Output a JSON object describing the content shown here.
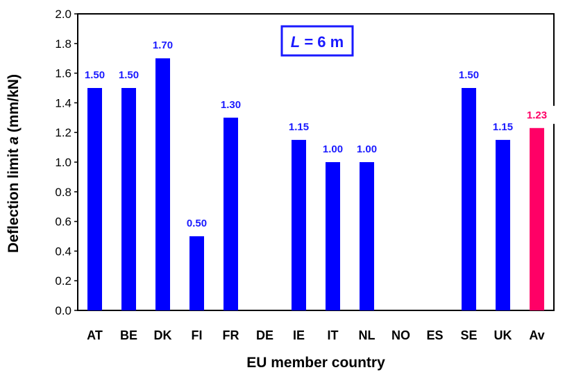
{
  "chart_data": {
    "type": "bar",
    "xlabel": "EU member country",
    "ylabel_parts": [
      "Deflection limit ",
      "a",
      " (mm/kN)"
    ],
    "ylim": [
      0,
      2.0
    ],
    "ytick_step": 0.2,
    "yticks": [
      "0.0",
      "0.2",
      "0.4",
      "0.6",
      "0.8",
      "1.0",
      "1.2",
      "1.4",
      "1.6",
      "1.8",
      "2.0"
    ],
    "grid": false,
    "categories": [
      "AT",
      "BE",
      "DK",
      "FI",
      "FR",
      "DE",
      "IE",
      "IT",
      "NL",
      "NO",
      "ES",
      "SE",
      "UK",
      "Av"
    ],
    "values": [
      1.5,
      1.5,
      1.7,
      0.5,
      1.3,
      null,
      1.15,
      1.0,
      1.0,
      null,
      null,
      1.5,
      1.15,
      1.23
    ],
    "value_labels": [
      "1.50",
      "1.50",
      "1.70",
      "0.50",
      "1.30",
      "",
      "1.15",
      "1.00",
      "1.00",
      "",
      "",
      "1.50",
      "1.15",
      "1.23"
    ],
    "colors": {
      "bar": "#0000ff",
      "average_bar": "#ff0066",
      "label": "#1a1aff",
      "average_label": "#ff0066"
    },
    "highlight_category": "Av",
    "annotation": {
      "italic": "L",
      "text": " = 6 m"
    }
  }
}
